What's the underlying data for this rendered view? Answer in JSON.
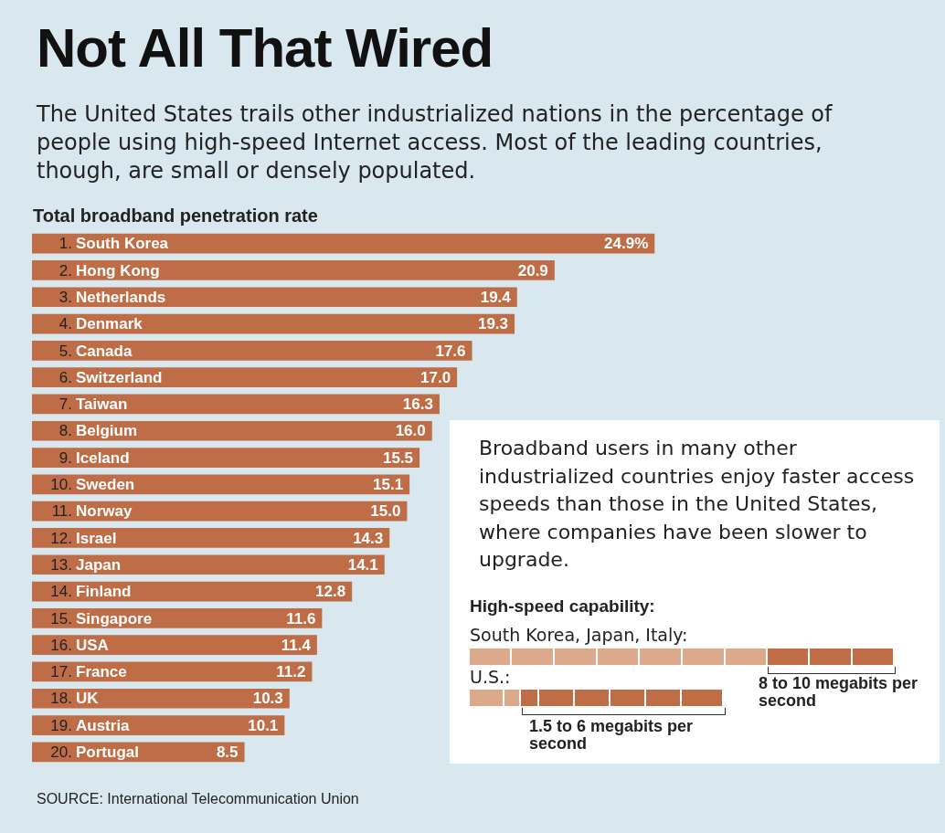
{
  "chart_data": {
    "type": "bar",
    "orientation": "horizontal",
    "title": "Not All That Wired",
    "subtitle": "The United States trails other industrialized nations in the percentage of people using high-speed Internet access. Most of the leading countries, though, are small or densely populated.",
    "xlabel": "Total broadband penetration rate",
    "categories": [
      "1. South Korea",
      "2. Hong Kong",
      "3. Netherlands",
      "4. Denmark",
      "5. Canada",
      "6. Switzerland",
      "7. Taiwan",
      "8. Belgium",
      "9. Iceland",
      "10. Sweden",
      "11. Norway",
      "12. Israel",
      "13. Japan",
      "14. Finland",
      "15. Singapore",
      "16. USA",
      "17. France",
      "18. UK",
      "19. Austria",
      "20. Portugal"
    ],
    "values": [
      24.9,
      20.9,
      19.4,
      19.3,
      17.6,
      17.0,
      16.3,
      16.0,
      15.5,
      15.1,
      15.0,
      14.3,
      14.1,
      12.8,
      11.6,
      11.4,
      11.2,
      10.3,
      10.1,
      8.5
    ],
    "value_labels": [
      "24.9%",
      "20.9",
      "19.4",
      "19.3",
      "17.6",
      "17.0",
      "16.3",
      "16.0",
      "15.5",
      "15.1",
      "15.0",
      "14.3",
      "14.1",
      "12.8",
      "11.6",
      "11.4",
      "11.2",
      "10.3",
      "10.1",
      "8.5"
    ],
    "color": "#bf6d47",
    "xlim": [
      0,
      25
    ],
    "annotations": [
      "Broadband users in many other industrialized countries enjoy faster access speeds than those in the United States, where companies have been slower to upgrade.",
      "High-speed capability:",
      "South Korea, Japan, Italy:",
      "U.S.:",
      "8 to 10 megabits per second",
      "1.5 to 6 megabits per second",
      "SOURCE: International Telecommunication Union"
    ]
  }
}
